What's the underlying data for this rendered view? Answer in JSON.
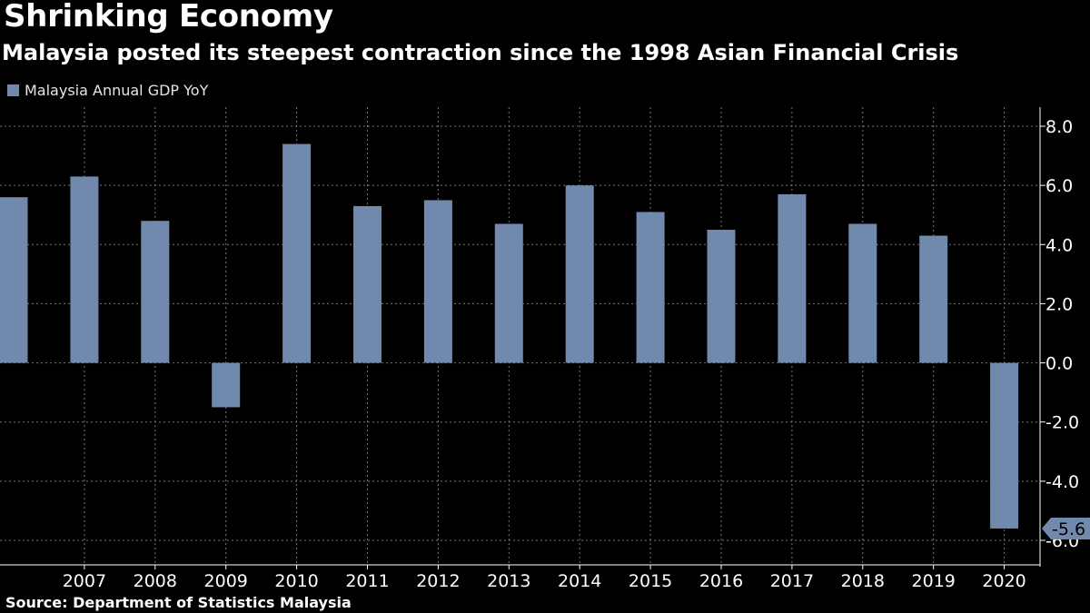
{
  "header": {
    "title": "Shrinking Economy",
    "subtitle": "Malaysia posted its steepest contraction since the 1998 Asian Financial Crisis"
  },
  "footer": {
    "source": "Source: Department of Statistics Malaysia"
  },
  "colors": {
    "background": "#000000",
    "bar": "#7189ad",
    "grid": "#777777",
    "text": "#ffffff"
  },
  "chart_data": {
    "type": "bar",
    "title": "Shrinking Economy",
    "subtitle": "Malaysia posted its steepest contraction since the 1998 Asian Financial Crisis",
    "categories": [
      "",
      "2007",
      "2008",
      "2009",
      "2010",
      "2011",
      "2012",
      "2013",
      "2014",
      "2015",
      "2016",
      "2017",
      "2018",
      "2019",
      "2020"
    ],
    "series": [
      {
        "name": "Malaysia Annual GDP YoY",
        "values": [
          5.6,
          6.3,
          4.8,
          -1.5,
          7.4,
          5.3,
          5.5,
          4.7,
          6.0,
          5.1,
          4.5,
          5.7,
          4.7,
          4.3,
          -5.6
        ]
      }
    ],
    "ylim": [
      -6.0,
      8.0
    ],
    "yticks": [
      8.0,
      6.0,
      4.0,
      2.0,
      0.0,
      -2.0,
      -4.0,
      -6.0
    ],
    "ytick_labels": [
      "8.0",
      "6.0",
      "4.0",
      "2.0",
      "0.0",
      "-2.0",
      "-4.0",
      "-6.0"
    ],
    "y_axis_side": "right",
    "grid": true,
    "legend": "top-left",
    "callout": "-5.6",
    "xlabel": "",
    "ylabel": ""
  }
}
